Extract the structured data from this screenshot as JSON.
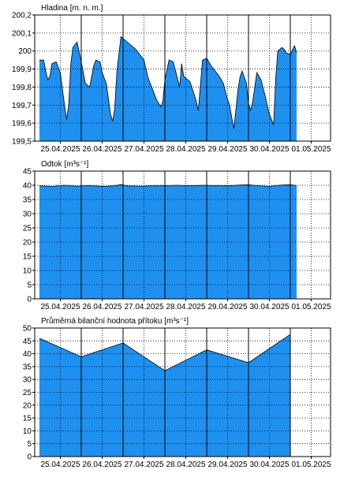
{
  "colors": {
    "fill": "#1e90f0",
    "line": "#000000",
    "grid": "#000000",
    "background": "#ffffff"
  },
  "chart_data": [
    {
      "type": "area",
      "title": "Hladina [m. n. m.]",
      "ylim": [
        199.5,
        200.2
      ],
      "yticks": [
        199.5,
        199.6,
        199.7,
        199.8,
        199.9,
        200,
        200.1,
        200.2
      ],
      "ytick_labels": [
        "199,5",
        "199,6",
        "199,7",
        "199,8",
        "199,9",
        "200",
        "200,1",
        "200,2"
      ],
      "xlim": [
        0,
        7
      ],
      "x_tick_labels": [
        "25.04.2025",
        "26.04.2025",
        "27.04.2025",
        "28.04.2025",
        "29.04.2025",
        "30.04.2025",
        "01.05.2025"
      ],
      "grid": true,
      "x": [
        0,
        0.1,
        0.15,
        0.2,
        0.25,
        0.3,
        0.4,
        0.5,
        0.6,
        0.65,
        0.7,
        0.75,
        0.8,
        0.9,
        1.0,
        1.1,
        1.2,
        1.3,
        1.35,
        1.45,
        1.5,
        1.6,
        1.7,
        1.75,
        1.8,
        1.85,
        1.95,
        2.05,
        2.2,
        2.3,
        2.5,
        2.55,
        2.6,
        2.7,
        2.8,
        2.9,
        2.95,
        3.0,
        3.1,
        3.2,
        3.3,
        3.35,
        3.4,
        3.45,
        3.5,
        3.6,
        3.7,
        3.75,
        3.8,
        3.9,
        4.0,
        4.1,
        4.2,
        4.3,
        4.4,
        4.5,
        4.55,
        4.6,
        4.65,
        4.75,
        4.8,
        4.85,
        4.95,
        5.0,
        5.05,
        5.1,
        5.2,
        5.3,
        5.4,
        5.5,
        5.6,
        5.65,
        5.7,
        5.8,
        5.85,
        5.9,
        6.0,
        6.1,
        6.15
      ],
      "values": [
        199.95,
        199.95,
        199.89,
        199.84,
        199.86,
        199.93,
        199.94,
        199.88,
        199.7,
        199.62,
        199.7,
        199.93,
        200.02,
        200.05,
        199.94,
        199.82,
        199.8,
        199.92,
        199.95,
        199.94,
        199.88,
        199.82,
        199.65,
        199.61,
        199.68,
        199.88,
        200.08,
        200.06,
        200.03,
        200.01,
        199.95,
        199.9,
        199.85,
        199.79,
        199.73,
        199.69,
        199.72,
        199.84,
        199.95,
        199.94,
        199.85,
        199.8,
        199.93,
        199.86,
        199.85,
        199.83,
        199.76,
        199.72,
        199.67,
        199.95,
        199.96,
        199.92,
        199.89,
        199.86,
        199.82,
        199.73,
        199.7,
        199.63,
        199.57,
        199.79,
        199.86,
        199.89,
        199.82,
        199.71,
        199.67,
        199.72,
        199.88,
        199.84,
        199.75,
        199.65,
        199.59,
        199.85,
        200.0,
        200.02,
        200.01,
        199.99,
        199.98,
        200.03,
        199.99
      ]
    },
    {
      "type": "area",
      "title": "Odtok [m³s⁻¹]",
      "ylim": [
        0,
        45
      ],
      "yticks": [
        0,
        5,
        10,
        15,
        20,
        25,
        30,
        35,
        40,
        45
      ],
      "ytick_labels": [
        "0",
        "5",
        "10",
        "15",
        "20",
        "25",
        "30",
        "35",
        "40",
        "45"
      ],
      "xlim": [
        0,
        7
      ],
      "x_tick_labels": [
        "25.04.2025",
        "26.04.2025",
        "27.04.2025",
        "28.04.2025",
        "29.04.2025",
        "30.04.2025",
        "01.05.2025"
      ],
      "grid": true,
      "x": [
        0,
        0.3,
        0.6,
        0.9,
        1.2,
        1.5,
        1.8,
        1.95,
        2.1,
        2.4,
        2.7,
        3.0,
        3.3,
        3.6,
        3.9,
        4.2,
        4.5,
        4.8,
        5.0,
        5.2,
        5.5,
        5.8,
        6.0,
        6.15
      ],
      "values": [
        39.8,
        39.6,
        40.0,
        39.7,
        39.9,
        39.6,
        39.8,
        40.3,
        39.8,
        39.7,
        39.8,
        39.9,
        40.0,
        39.8,
        40.0,
        39.9,
        39.8,
        40.1,
        40.2,
        39.9,
        39.6,
        40.1,
        40.2,
        39.9
      ]
    },
    {
      "type": "area",
      "title": "Průměrná bilanční hodnota přítoku    [m³s⁻¹]",
      "ylim": [
        0,
        50
      ],
      "yticks": [
        0,
        5,
        10,
        15,
        20,
        25,
        30,
        35,
        40,
        45,
        50
      ],
      "ytick_labels": [
        "0",
        "5",
        "10",
        "15",
        "20",
        "25",
        "30",
        "35",
        "40",
        "45",
        "50"
      ],
      "xlim": [
        0,
        7
      ],
      "x_tick_labels": [
        "25.04.2025",
        "26.04.2025",
        "27.04.2025",
        "28.04.2025",
        "29.04.2025",
        "30.04.2025",
        "01.05.2025"
      ],
      "grid": true,
      "x": [
        0,
        1,
        2,
        3,
        4,
        5,
        6
      ],
      "values": [
        46,
        38.8,
        44.2,
        33.4,
        41.5,
        36.5,
        47.5
      ]
    }
  ]
}
